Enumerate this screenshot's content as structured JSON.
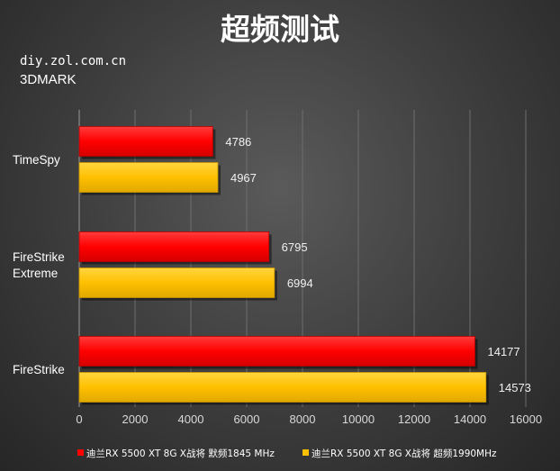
{
  "header": {
    "title": "超频测试",
    "source": "diy.zol.com.cn",
    "benchmark": "3DMARK"
  },
  "colors": {
    "series_default": "#ff0000",
    "series_oc": "#ffc000",
    "grid": "#6e6e6e"
  },
  "chart_data": {
    "type": "bar",
    "orientation": "horizontal",
    "title": "超频测试",
    "categories": [
      "TimeSpy",
      "FireStrike Extreme",
      "FireStrike"
    ],
    "category_display": [
      [
        "TimeSpy"
      ],
      [
        "FireStrike",
        "Extreme"
      ],
      [
        "FireStrike"
      ]
    ],
    "series": [
      {
        "name": "迪兰RX 5500 XT 8G X战将 默频1845 MHz",
        "color": "#ff0000",
        "values": [
          4786,
          6795,
          14177
        ]
      },
      {
        "name": "迪兰RX 5500 XT 8G X战将 超频1990MHz",
        "color": "#ffc000",
        "values": [
          4967,
          6994,
          14573
        ]
      }
    ],
    "xlim": [
      0,
      16000
    ],
    "ticks": [
      "0",
      "2000",
      "4000",
      "6000",
      "8000",
      "10000",
      "12000",
      "14000",
      "16000"
    ],
    "tick_values": [
      0,
      2000,
      4000,
      6000,
      8000,
      10000,
      12000,
      14000,
      16000
    ],
    "grid": true,
    "legend_position": "bottom"
  }
}
